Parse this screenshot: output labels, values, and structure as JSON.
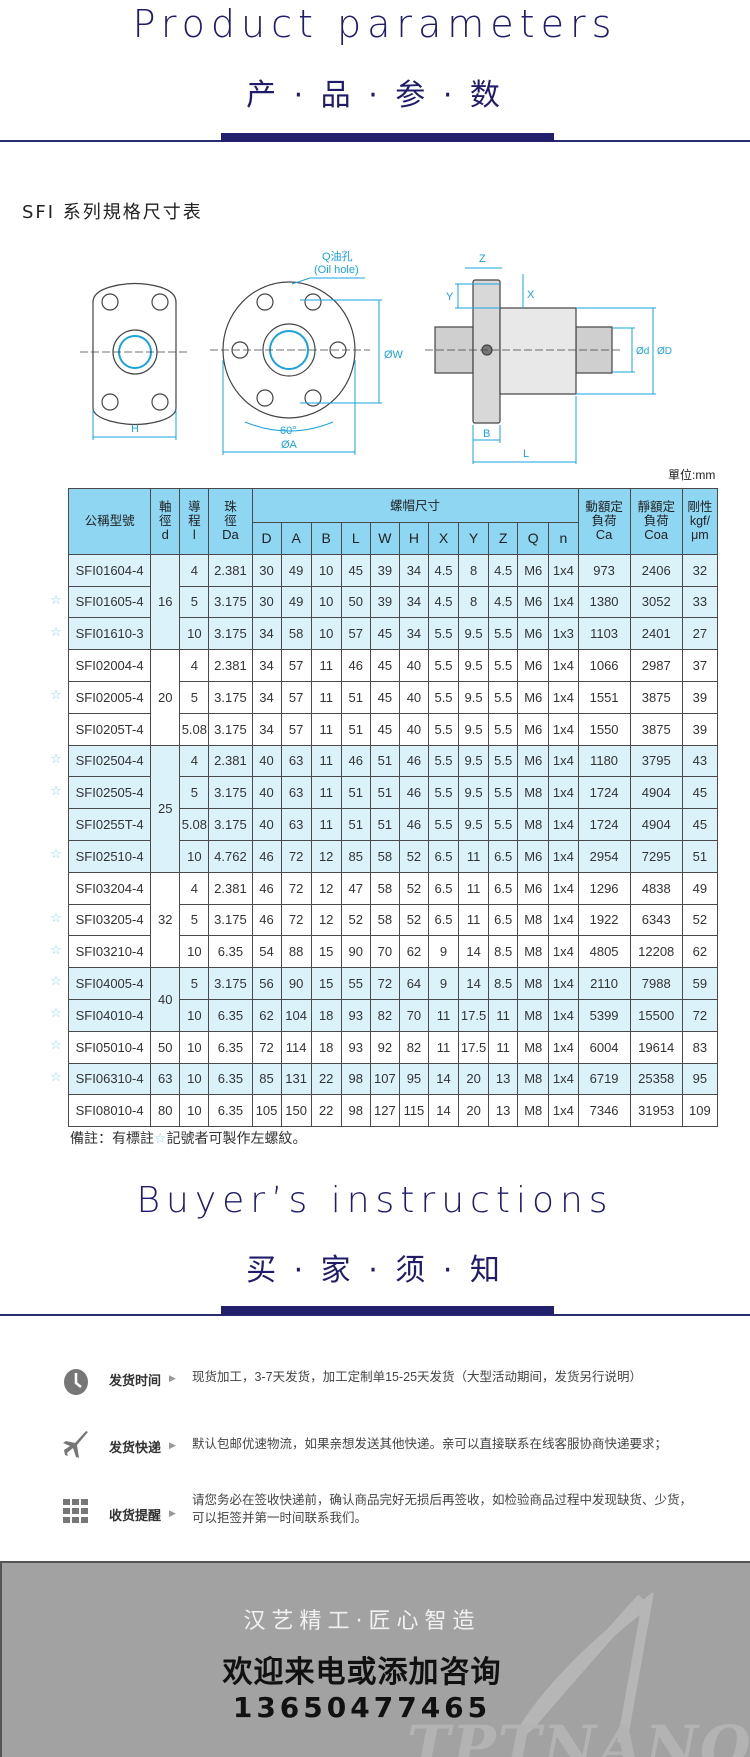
{
  "header": {
    "title_en": "Product parameters",
    "title_cn": "产 · 品 · 参 · 数"
  },
  "subtitle": "SFI 系列規格尺寸表",
  "drawing": {
    "oil_hole_cn": "Q油孔",
    "oil_hole_en": "(Oil hole)",
    "labels": {
      "H": "H",
      "A": "ØA",
      "angle": "60°",
      "W": "ØW",
      "Z": "Z",
      "Y": "Y",
      "X": "X",
      "B": "B",
      "L": "L",
      "d": "Ød",
      "D": "ØD"
    },
    "accent_color": "#1aa3dc"
  },
  "unit": "單位:mm",
  "table": {
    "headers": {
      "model": "公稱型號",
      "d": [
        "軸",
        "徑",
        "d"
      ],
      "l": [
        "導",
        "程",
        "l"
      ],
      "da": [
        "珠",
        "徑",
        "Da"
      ],
      "nut": "螺帽尺寸",
      "nut_cols": [
        "D",
        "A",
        "B",
        "L",
        "W",
        "H",
        "X",
        "Y",
        "Z",
        "Q",
        "n"
      ],
      "ca": [
        "動額定",
        "負荷",
        "Ca"
      ],
      "coa": [
        "靜額定",
        "負荷",
        "Coa"
      ],
      "k": [
        "剛性",
        "kgf/",
        "μm"
      ]
    },
    "groups": [
      {
        "d": "16",
        "shade": "blue",
        "rows": [
          {
            "star": false,
            "model": "SFI01604-4",
            "l": "4",
            "da": "2.381",
            "v": [
              "30",
              "49",
              "10",
              "45",
              "39",
              "34",
              "4.5",
              "8",
              "4.5",
              "M6",
              "1x4"
            ],
            "ca": "973",
            "coa": "2406",
            "k": "32"
          },
          {
            "star": true,
            "model": "SFI01605-4",
            "l": "5",
            "da": "3.175",
            "v": [
              "30",
              "49",
              "10",
              "50",
              "39",
              "34",
              "4.5",
              "8",
              "4.5",
              "M6",
              "1x4"
            ],
            "ca": "1380",
            "coa": "3052",
            "k": "33"
          },
          {
            "star": true,
            "model": "SFI01610-3",
            "l": "10",
            "da": "3.175",
            "v": [
              "34",
              "58",
              "10",
              "57",
              "45",
              "34",
              "5.5",
              "9.5",
              "5.5",
              "M6",
              "1x3"
            ],
            "ca": "1103",
            "coa": "2401",
            "k": "27"
          }
        ]
      },
      {
        "d": "20",
        "shade": "white",
        "rows": [
          {
            "star": false,
            "model": "SFI02004-4",
            "l": "4",
            "da": "2.381",
            "v": [
              "34",
              "57",
              "11",
              "46",
              "45",
              "40",
              "5.5",
              "9.5",
              "5.5",
              "M6",
              "1x4"
            ],
            "ca": "1066",
            "coa": "2987",
            "k": "37"
          },
          {
            "star": true,
            "model": "SFI02005-4",
            "l": "5",
            "da": "3.175",
            "v": [
              "34",
              "57",
              "11",
              "51",
              "45",
              "40",
              "5.5",
              "9.5",
              "5.5",
              "M6",
              "1x4"
            ],
            "ca": "1551",
            "coa": "3875",
            "k": "39"
          },
          {
            "star": false,
            "model": "SFI0205T-4",
            "l": "5.08",
            "da": "3.175",
            "v": [
              "34",
              "57",
              "11",
              "51",
              "45",
              "40",
              "5.5",
              "9.5",
              "5.5",
              "M6",
              "1x4"
            ],
            "ca": "1550",
            "coa": "3875",
            "k": "39"
          }
        ]
      },
      {
        "d": "25",
        "shade": "blue",
        "rows": [
          {
            "star": true,
            "model": "SFI02504-4",
            "l": "4",
            "da": "2.381",
            "v": [
              "40",
              "63",
              "11",
              "46",
              "51",
              "46",
              "5.5",
              "9.5",
              "5.5",
              "M6",
              "1x4"
            ],
            "ca": "1180",
            "coa": "3795",
            "k": "43"
          },
          {
            "star": true,
            "model": "SFI02505-4",
            "l": "5",
            "da": "3.175",
            "v": [
              "40",
              "63",
              "11",
              "51",
              "51",
              "46",
              "5.5",
              "9.5",
              "5.5",
              "M8",
              "1x4"
            ],
            "ca": "1724",
            "coa": "4904",
            "k": "45"
          },
          {
            "star": false,
            "model": "SFI0255T-4",
            "l": "5.08",
            "da": "3.175",
            "v": [
              "40",
              "63",
              "11",
              "51",
              "51",
              "46",
              "5.5",
              "9.5",
              "5.5",
              "M8",
              "1x4"
            ],
            "ca": "1724",
            "coa": "4904",
            "k": "45"
          },
          {
            "star": true,
            "model": "SFI02510-4",
            "l": "10",
            "da": "4.762",
            "v": [
              "46",
              "72",
              "12",
              "85",
              "58",
              "52",
              "6.5",
              "11",
              "6.5",
              "M6",
              "1x4"
            ],
            "ca": "2954",
            "coa": "7295",
            "k": "51"
          }
        ]
      },
      {
        "d": "32",
        "shade": "white",
        "rows": [
          {
            "star": false,
            "model": "SFI03204-4",
            "l": "4",
            "da": "2.381",
            "v": [
              "46",
              "72",
              "12",
              "47",
              "58",
              "52",
              "6.5",
              "11",
              "6.5",
              "M6",
              "1x4"
            ],
            "ca": "1296",
            "coa": "4838",
            "k": "49"
          },
          {
            "star": true,
            "model": "SFI03205-4",
            "l": "5",
            "da": "3.175",
            "v": [
              "46",
              "72",
              "12",
              "52",
              "58",
              "52",
              "6.5",
              "11",
              "6.5",
              "M8",
              "1x4"
            ],
            "ca": "1922",
            "coa": "6343",
            "k": "52"
          },
          {
            "star": true,
            "model": "SFI03210-4",
            "l": "10",
            "da": "6.35",
            "v": [
              "54",
              "88",
              "15",
              "90",
              "70",
              "62",
              "9",
              "14",
              "8.5",
              "M8",
              "1x4"
            ],
            "ca": "4805",
            "coa": "12208",
            "k": "62"
          }
        ]
      },
      {
        "d": "40",
        "shade": "blue",
        "rows": [
          {
            "star": true,
            "model": "SFI04005-4",
            "l": "5",
            "da": "3.175",
            "v": [
              "56",
              "90",
              "15",
              "55",
              "72",
              "64",
              "9",
              "14",
              "8.5",
              "M8",
              "1x4"
            ],
            "ca": "2110",
            "coa": "7988",
            "k": "59"
          },
          {
            "star": true,
            "model": "SFI04010-4",
            "l": "10",
            "da": "6.35",
            "v": [
              "62",
              "104",
              "18",
              "93",
              "82",
              "70",
              "11",
              "17.5",
              "11",
              "M8",
              "1x4"
            ],
            "ca": "5399",
            "coa": "15500",
            "k": "72"
          }
        ]
      },
      {
        "d": "50",
        "shade": "white",
        "rows": [
          {
            "star": true,
            "model": "SFI05010-4",
            "l": "10",
            "da": "6.35",
            "v": [
              "72",
              "114",
              "18",
              "93",
              "92",
              "82",
              "11",
              "17.5",
              "11",
              "M8",
              "1x4"
            ],
            "ca": "6004",
            "coa": "19614",
            "k": "83"
          }
        ]
      },
      {
        "d": "63",
        "shade": "blue",
        "rows": [
          {
            "star": true,
            "model": "SFI06310-4",
            "l": "10",
            "da": "6.35",
            "v": [
              "85",
              "131",
              "22",
              "98",
              "107",
              "95",
              "14",
              "20",
              "13",
              "M8",
              "1x4"
            ],
            "ca": "6719",
            "coa": "25358",
            "k": "95"
          }
        ]
      },
      {
        "d": "80",
        "shade": "white",
        "rows": [
          {
            "star": false,
            "model": "SFI08010-4",
            "l": "10",
            "da": "6.35",
            "v": [
              "105",
              "150",
              "22",
              "98",
              "127",
              "115",
              "14",
              "20",
              "13",
              "M8",
              "1x4"
            ],
            "ca": "7346",
            "coa": "31953",
            "k": "109"
          }
        ]
      }
    ],
    "star_symbol": "☆",
    "note_prefix": "備註：有標註",
    "note_suffix": "記號者可製作左螺紋。",
    "colors": {
      "header": "#8fd6f3",
      "band": "#dcf2fb",
      "star": "#8ed3ee"
    }
  },
  "buyer": {
    "title_en": "Buyer’s instructions",
    "title_cn": "买 · 家 · 须 · 知",
    "items": [
      {
        "icon": "clock-icon",
        "label": "发货时间",
        "text": "现货加工，3-7天发货，加工定制单15-25天发货（大型活动期间，发货另行说明）"
      },
      {
        "icon": "airplane-icon",
        "label": "发货快递",
        "text": "默认包邮优速物流，如果亲想发送其他快递。亲可以直接联系在线客服协商快递要求；"
      },
      {
        "icon": "grid-icon",
        "label": "收货提醒",
        "text": "请您务必在签收快递前，确认商品完好无损后再签收，如检验商品过程中发现缺货、少货，可以拒签并第一时间联系我们。"
      }
    ],
    "arrow": "▶"
  },
  "banner": {
    "slogan": "汉艺精工·匠心智造",
    "cta": "欢迎来电或添加咨询",
    "phone": "13650477465",
    "watermark": "TPTNANO",
    "bg_color": "#a2a2a2"
  }
}
